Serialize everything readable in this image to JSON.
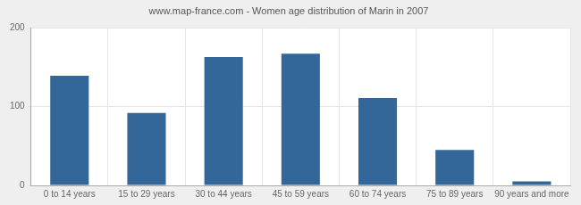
{
  "chart_data": {
    "type": "bar",
    "title": "www.map-france.com - Women age distribution of Marin in 2007",
    "categories": [
      "0 to 14 years",
      "15 to 29 years",
      "30 to 44 years",
      "45 to 59 years",
      "60 to 74 years",
      "75 to 89 years",
      "90 years and more"
    ],
    "values": [
      139,
      92,
      163,
      167,
      111,
      45,
      5
    ],
    "color": "#336699",
    "ylim": [
      0,
      200
    ],
    "yticks": [
      0,
      100,
      200
    ],
    "grid": true
  }
}
